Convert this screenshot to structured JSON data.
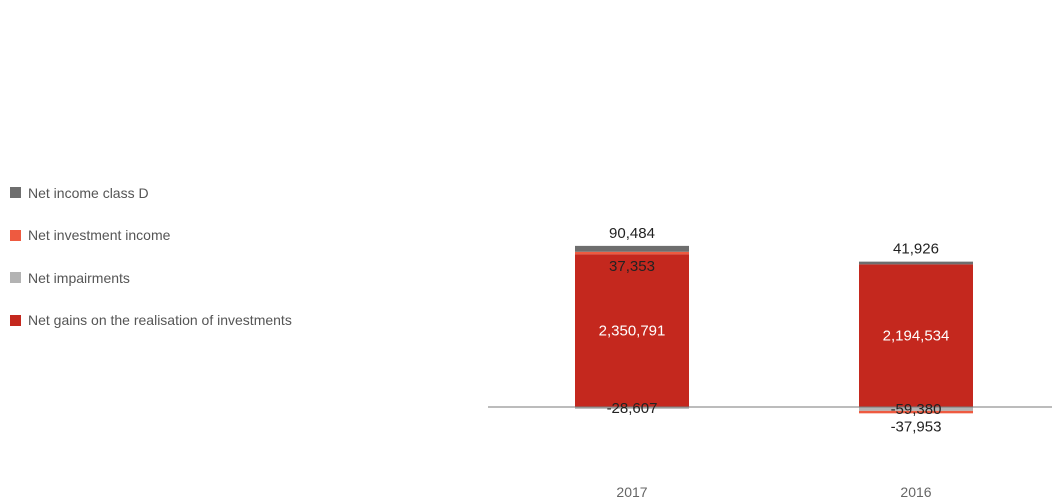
{
  "chart_data": {
    "type": "bar",
    "stacked": true,
    "categories": [
      "2017",
      "2016"
    ],
    "series": [
      {
        "name": "Net gains on the realisation of investments",
        "values": [
          2350791,
          2194534
        ],
        "color": "#c4281e"
      },
      {
        "name": "Net impairments",
        "values": [
          -28607,
          -59380
        ],
        "color": "#b3b3b3"
      },
      {
        "name": "Net investment income",
        "values": [
          37353,
          -37953
        ],
        "color": "#ee5a40"
      },
      {
        "name": "Net income class D",
        "values": [
          90484,
          41926
        ],
        "color": "#6e6e6e"
      }
    ],
    "legend_order": [
      "Net income class D",
      "Net investment income",
      "Net impairments",
      "Net gains on the realisation of investments"
    ],
    "legend_position": "left",
    "ylim": [
      -100000,
      2600000
    ],
    "grid": false,
    "title": "",
    "xlabel": "",
    "ylabel": ""
  }
}
